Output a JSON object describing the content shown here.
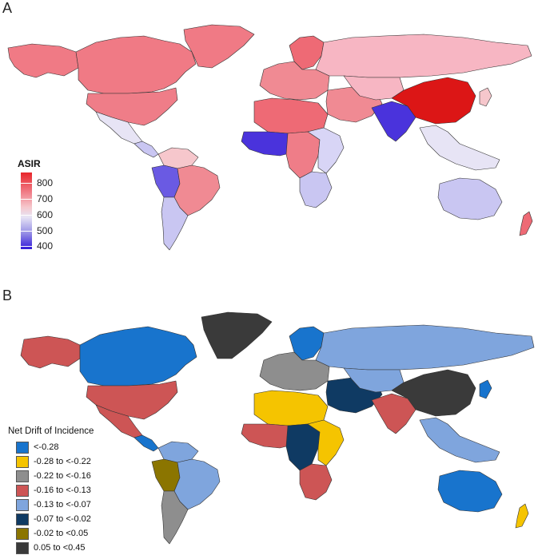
{
  "panels": {
    "a": {
      "label": "A",
      "legend": {
        "title": "ASIR",
        "ticks": [
          "800",
          "700",
          "600",
          "500",
          "400"
        ],
        "tick_values": [
          800,
          700,
          600,
          500,
          400
        ],
        "colors": {
          "high": "#e8262b",
          "mid": "#f6c7cc",
          "low": "#3219d8"
        }
      },
      "regions": [
        {
          "id": "north-america",
          "color": "#f07a85"
        },
        {
          "id": "greenland",
          "color": "#f07a85"
        },
        {
          "id": "alaska",
          "color": "#f07a85"
        },
        {
          "id": "usa",
          "color": "#ef7d88"
        },
        {
          "id": "mexico",
          "color": "#e7e4f5"
        },
        {
          "id": "central-america",
          "color": "#c9c6f2"
        },
        {
          "id": "south-america-north",
          "color": "#f6c7cc"
        },
        {
          "id": "brazil",
          "color": "#f08a93"
        },
        {
          "id": "peru-ecuador",
          "color": "#6a5ae3"
        },
        {
          "id": "south-america-south",
          "color": "#c9c6f2"
        },
        {
          "id": "europe",
          "color": "#f08a93"
        },
        {
          "id": "scandinavia",
          "color": "#ee6a75"
        },
        {
          "id": "russia",
          "color": "#f7b6c3"
        },
        {
          "id": "north-africa",
          "color": "#ee6a75"
        },
        {
          "id": "west-africa",
          "color": "#4a33dc"
        },
        {
          "id": "central-africa",
          "color": "#ef7d88"
        },
        {
          "id": "east-africa",
          "color": "#d8d5f6"
        },
        {
          "id": "southern-africa",
          "color": "#c9c6f2"
        },
        {
          "id": "middle-east",
          "color": "#f08a93"
        },
        {
          "id": "central-asia",
          "color": "#f7b6c3"
        },
        {
          "id": "india",
          "color": "#4a33dc"
        },
        {
          "id": "china",
          "color": "#dc1616"
        },
        {
          "id": "southeast-asia",
          "color": "#e7e4f5"
        },
        {
          "id": "japan",
          "color": "#f6c7cc"
        },
        {
          "id": "australia",
          "color": "#c9c6f2"
        },
        {
          "id": "new-zealand",
          "color": "#ee6a75"
        }
      ]
    },
    "b": {
      "label": "B",
      "legend": {
        "title": "Net Drift of Incidence",
        "items": [
          {
            "label": "<-0.28",
            "color": "#1874cd"
          },
          {
            "label": "-0.28 to <-0.22",
            "color": "#f5c400"
          },
          {
            "label": "-0.22 to <-0.16",
            "color": "#8e8e8e"
          },
          {
            "label": "-0.16 to <-0.13",
            "color": "#cd5555"
          },
          {
            "label": "-0.13 to <-0.07",
            "color": "#7fa5dd"
          },
          {
            "label": "-0.07 to <-0.02",
            "color": "#0f3a63"
          },
          {
            "label": "-0.02 to <0.05",
            "color": "#8b7500"
          },
          {
            "label": "0.05 to <0.45",
            "color": "#3a3a3a"
          }
        ]
      },
      "regions": [
        {
          "id": "canada",
          "color": "#1874cd"
        },
        {
          "id": "greenland",
          "color": "#3a3a3a"
        },
        {
          "id": "alaska",
          "color": "#cd5555"
        },
        {
          "id": "usa",
          "color": "#cd5555"
        },
        {
          "id": "mexico",
          "color": "#cd5555"
        },
        {
          "id": "central-america",
          "color": "#1874cd"
        },
        {
          "id": "south-america-north",
          "color": "#7fa5dd"
        },
        {
          "id": "brazil",
          "color": "#7fa5dd"
        },
        {
          "id": "peru-ecuador",
          "color": "#8b7500"
        },
        {
          "id": "south-america-south",
          "color": "#8e8e8e"
        },
        {
          "id": "europe",
          "color": "#8e8e8e"
        },
        {
          "id": "scandinavia",
          "color": "#1874cd"
        },
        {
          "id": "russia",
          "color": "#7fa5dd"
        },
        {
          "id": "north-africa",
          "color": "#f5c400"
        },
        {
          "id": "west-africa",
          "color": "#cd5555"
        },
        {
          "id": "central-africa",
          "color": "#0f3a63"
        },
        {
          "id": "east-africa",
          "color": "#f5c400"
        },
        {
          "id": "southern-africa",
          "color": "#cd5555"
        },
        {
          "id": "middle-east",
          "color": "#0f3a63"
        },
        {
          "id": "central-asia",
          "color": "#7fa5dd"
        },
        {
          "id": "india",
          "color": "#cd5555"
        },
        {
          "id": "china",
          "color": "#3a3a3a"
        },
        {
          "id": "southeast-asia",
          "color": "#7fa5dd"
        },
        {
          "id": "japan",
          "color": "#1874cd"
        },
        {
          "id": "australia",
          "color": "#1874cd"
        },
        {
          "id": "new-zealand",
          "color": "#f5c400"
        }
      ]
    }
  }
}
